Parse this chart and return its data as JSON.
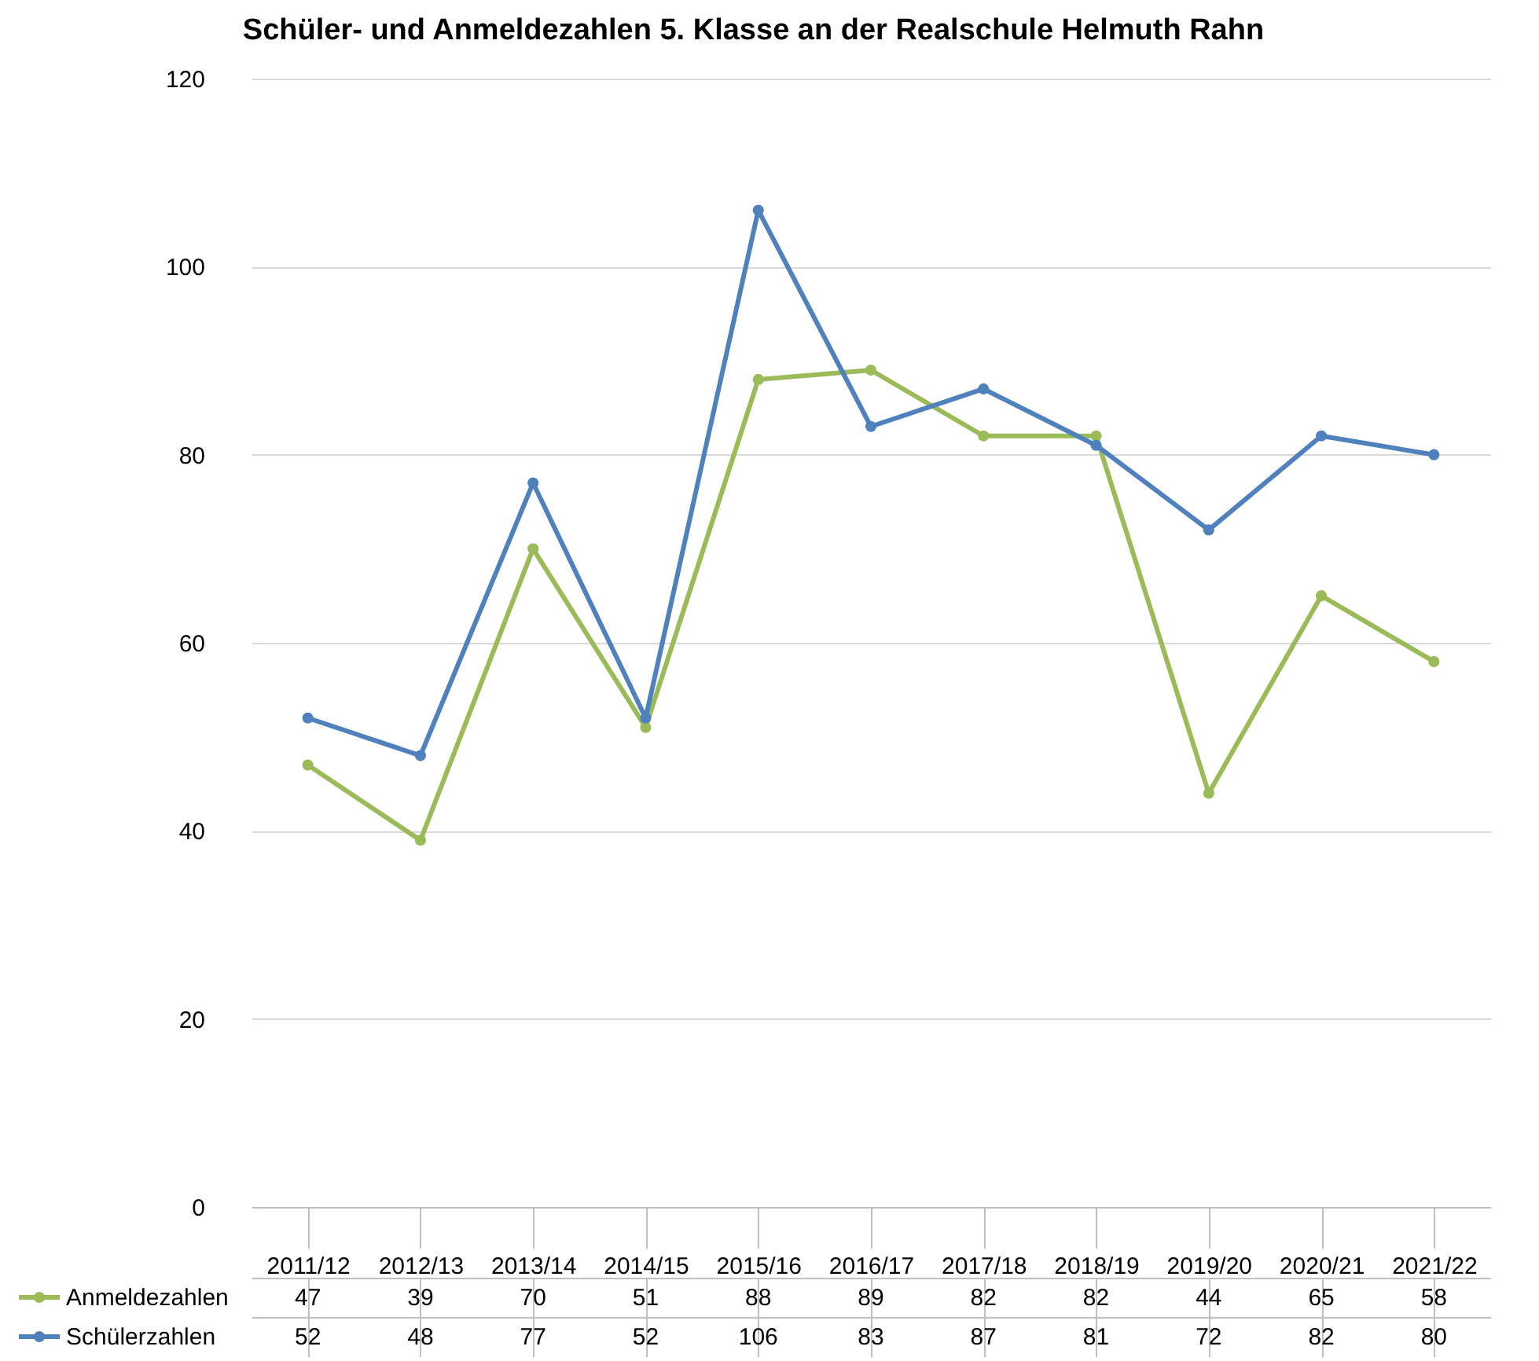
{
  "chart_data": {
    "type": "line",
    "title": "Schüler- und Anmeldezahlen 5. Klasse an der Realschule Helmuth Rahn",
    "categories": [
      "2011/12",
      "2012/13",
      "2013/14",
      "2014/15",
      "2015/16",
      "2016/17",
      "2017/18",
      "2018/19",
      "2019/20",
      "2020/21",
      "2021/22"
    ],
    "series": [
      {
        "name": "Anmeldezahlen",
        "color": "#9bbb59",
        "values": [
          47,
          39,
          70,
          51,
          88,
          89,
          82,
          82,
          44,
          65,
          58
        ]
      },
      {
        "name": "Schülerzahlen",
        "color": "#4f81bd",
        "values": [
          52,
          48,
          77,
          52,
          106,
          83,
          87,
          81,
          72,
          82,
          80
        ]
      }
    ],
    "ylim": [
      0,
      120
    ],
    "yticks": [
      0,
      20,
      40,
      60,
      80,
      100,
      120
    ],
    "grid": "y",
    "legend": "bottom left",
    "marker": "circle",
    "line_style": "solid",
    "data_labels": true
  }
}
